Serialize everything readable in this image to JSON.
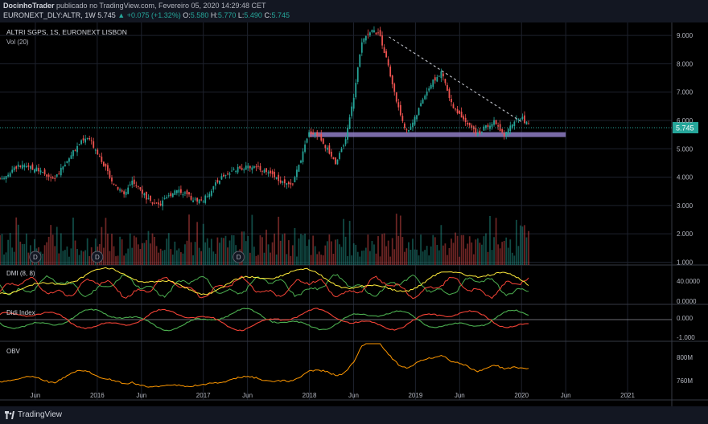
{
  "header": {
    "author": "DocinhoTrader",
    "published": "publicado no TradingView.com, Fevereiro 05, 2020 14:29:48 CET",
    "symbol": "EURONEXT_DLY:ALTR, 1W",
    "last": "5.745",
    "change": "+0.075 (+1.32%)",
    "o_label": "O:",
    "o": "5.580",
    "h_label": "H:",
    "h": "5.770",
    "l_label": "L:",
    "l": "5.490",
    "c_label": "C:",
    "c": "5.745"
  },
  "chart_title": "ALTRI SGPS, 1S, EURONEXT LISBON",
  "footer": {
    "brand": "TradingView"
  },
  "colors": {
    "up": "#26a69a",
    "down": "#ef5350",
    "bg": "#000000",
    "panel_bg": "#131722",
    "grid": "#1e222d",
    "support_zone": "#8e7cc3",
    "last_price": "#26a69a",
    "dmi_plus": "#4caf50",
    "dmi_minus": "#f44336",
    "adx": "#ffeb3b",
    "didi_fast": "#4caf50",
    "didi_slow": "#f44336",
    "obv": "#ff9800"
  },
  "chart_data": [
    {
      "type": "candlestick",
      "title": "ALTRI SGPS, 1S, EURONEXT LISBON",
      "x_ticks": [
        "Jun",
        "2016",
        "Jun",
        "2017",
        "Jun",
        "2018",
        "Jun",
        "2019",
        "Jun",
        "2020",
        "Jun",
        "2021"
      ],
      "x_tick_dates": [
        "2015-06",
        "2016-01",
        "2016-06",
        "2017-01",
        "2017-06",
        "2018-01",
        "2018-06",
        "2019-01",
        "2019-06",
        "2020-01",
        "2020-06",
        "2021-01"
      ],
      "x_range": [
        "2015-02",
        "2021-06"
      ],
      "y_ticks": [
        "1.000",
        "2.000",
        "3.000",
        "4.000",
        "5.000",
        "6.000",
        "7.000",
        "8.000",
        "9.000"
      ],
      "ylim": [
        0.9,
        9.4
      ],
      "last_price_label": "5.745",
      "close_path": [
        [
          "2015-02",
          3.9
        ],
        [
          "2015-04",
          4.4
        ],
        [
          "2015-06",
          4.3
        ],
        [
          "2015-08",
          3.9
        ],
        [
          "2015-09",
          4.3
        ],
        [
          "2015-11",
          5.2
        ],
        [
          "2015-12",
          5.4
        ],
        [
          "2016-01",
          4.9
        ],
        [
          "2016-03",
          3.7
        ],
        [
          "2016-04",
          3.4
        ],
        [
          "2016-05",
          3.9
        ],
        [
          "2016-06",
          3.5
        ],
        [
          "2016-07",
          3.1
        ],
        [
          "2016-08",
          3.0
        ],
        [
          "2016-10",
          3.6
        ],
        [
          "2016-12",
          3.2
        ],
        [
          "2017-01",
          3.2
        ],
        [
          "2017-03",
          4.0
        ],
        [
          "2017-05",
          4.3
        ],
        [
          "2017-07",
          4.4
        ],
        [
          "2017-08",
          4.2
        ],
        [
          "2017-10",
          3.8
        ],
        [
          "2017-11",
          3.7
        ],
        [
          "2017-12",
          4.6
        ],
        [
          "2018-01",
          5.6
        ],
        [
          "2018-02",
          5.5
        ],
        [
          "2018-03",
          5.0
        ],
        [
          "2018-04",
          4.5
        ],
        [
          "2018-05",
          5.2
        ],
        [
          "2018-06",
          6.8
        ],
        [
          "2018-07",
          8.9
        ],
        [
          "2018-08",
          9.2
        ],
        [
          "2018-09",
          9.0
        ],
        [
          "2018-10",
          7.8
        ],
        [
          "2018-11",
          6.5
        ],
        [
          "2018-12",
          5.6
        ],
        [
          "2019-01",
          6.1
        ],
        [
          "2019-02",
          6.9
        ],
        [
          "2019-03",
          7.4
        ],
        [
          "2019-04",
          7.7
        ],
        [
          "2019-05",
          6.6
        ],
        [
          "2019-06",
          6.2
        ],
        [
          "2019-07",
          5.9
        ],
        [
          "2019-08",
          5.5
        ],
        [
          "2019-09",
          5.8
        ],
        [
          "2019-10",
          6.0
        ],
        [
          "2019-11",
          5.4
        ],
        [
          "2019-12",
          5.9
        ],
        [
          "2020-01",
          6.1
        ],
        [
          "2020-02",
          5.745
        ]
      ],
      "support_zone": {
        "from": "2018-01",
        "to": "2020-06",
        "price": 5.5
      },
      "trendline": {
        "from": [
          "2018-10",
          8.95
        ],
        "to": [
          "2020-01",
          5.95
        ]
      },
      "dividend_markers": [
        "2015-06",
        "2016-01",
        "2017-05"
      ],
      "dividend_marker_label": "D"
    },
    {
      "type": "bar",
      "name": "Vol (20)",
      "note": "weekly volume histogram, green = up week, red = down week"
    },
    {
      "type": "line",
      "name": "DMI (8, 8)",
      "y_ticks": [
        "0.0000",
        "40.0000"
      ],
      "series": [
        "+DI",
        "-DI",
        "ADX"
      ]
    },
    {
      "type": "line",
      "name": "Didi Index",
      "y_ticks": [
        "-1.000",
        "0.000"
      ],
      "series": [
        "fast",
        "slow"
      ]
    },
    {
      "type": "line",
      "name": "OBV",
      "y_ticks": [
        "760M",
        "800M"
      ]
    }
  ]
}
